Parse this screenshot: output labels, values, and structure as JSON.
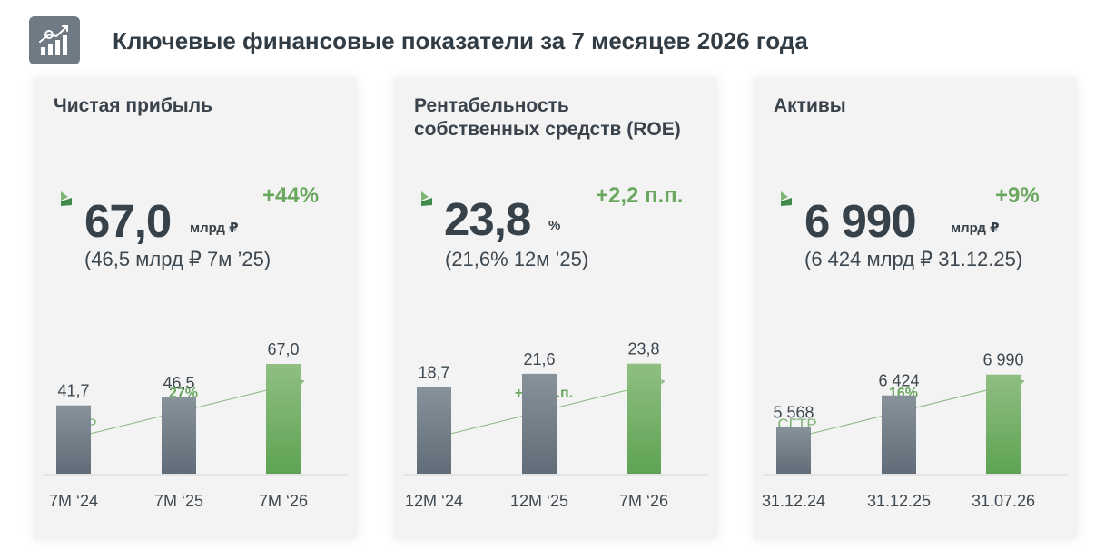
{
  "header": {
    "title": "Ключевые финансовые показатели за 7 месяцев 2026 года",
    "icon": "analytics-chart-icon"
  },
  "colors": {
    "accent_green": "#6aa860",
    "bar_gray_top": "#87929b",
    "bar_gray_bottom": "#606c77",
    "bar_green_top": "#8fbf82",
    "bar_green_bottom": "#5ea353",
    "card_bg": "#f3f3f3",
    "text_dark": "#36414a"
  },
  "cards": [
    {
      "title": "Чистая прибыль",
      "value": "67,0",
      "unit": "млрд ₽",
      "delta": "+44%",
      "previous": "(46,5 млрд ₽  7м ’25)"
    },
    {
      "title": "Рентабельность собственных средств (ROE)",
      "value": "23,8",
      "unit": "%",
      "delta": "+2,2 п.п.",
      "previous": "(21,6%  12м ’25)"
    },
    {
      "title": "Активы",
      "value": "6 990",
      "unit": "млрд ₽",
      "delta": "+9%",
      "previous": "(6 424 млрд ₽  31.12.25)"
    }
  ],
  "chart_data": [
    {
      "type": "bar",
      "categories": [
        "7М ‘24",
        "7М ‘25",
        "7М ‘26"
      ],
      "values": [
        41.7,
        46.5,
        67.0
      ],
      "value_labels": [
        "41,7",
        "46,5",
        "67,0"
      ],
      "growth_label": "27%",
      "cagr_label": "СГТР",
      "highlight_index": 2,
      "ylim": [
        0,
        72
      ]
    },
    {
      "type": "bar",
      "categories": [
        "12М ‘24",
        "12М ‘25",
        "7М ‘26"
      ],
      "values": [
        18.7,
        21.6,
        23.8
      ],
      "value_labels": [
        "18,7",
        "21,6",
        "23,8"
      ],
      "growth_label": "+5,1 п.п.",
      "cagr_label": "",
      "highlight_index": 2,
      "ylim": [
        0,
        25.5
      ]
    },
    {
      "type": "bar",
      "categories": [
        "31.12.24",
        "31.12.25",
        "31.07.26"
      ],
      "values": [
        5568,
        6424,
        6990
      ],
      "value_labels": [
        "5 568",
        "6 424",
        "6 990"
      ],
      "growth_label": "16%",
      "cagr_label": "СГТР",
      "highlight_index": 2,
      "ylim": [
        0,
        7500
      ]
    }
  ]
}
